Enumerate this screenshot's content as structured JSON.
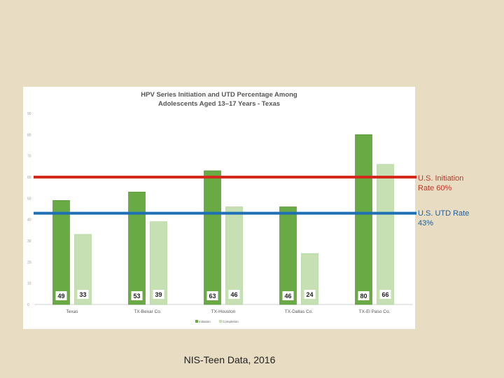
{
  "chart_data": {
    "type": "bar",
    "title": "HPV Series Initiation and UTD Percentage Among Adolescents Aged 13–17 Years - Texas",
    "categories": [
      "Texas",
      "TX-Bexar Co.",
      "TX-Houston",
      "TX-Dallas Co.",
      "TX-El Paso Co."
    ],
    "series": [
      {
        "name": "Initiation",
        "values": [
          49,
          53,
          63,
          46,
          80
        ],
        "color": "#6aaa45"
      },
      {
        "name": "Completion",
        "values": [
          33,
          39,
          46,
          24,
          66
        ],
        "color": "#c6e0b4"
      }
    ],
    "ylim": [
      0,
      90
    ],
    "yticks": [
      0,
      10,
      20,
      30,
      40,
      50,
      60,
      70,
      80,
      90
    ],
    "grid": false,
    "legend": "bottom",
    "reference_lines": [
      {
        "label": "U.S. Initiation Rate 60%",
        "value": 60,
        "color": "#d42a1e"
      },
      {
        "label": "U.S. UTD Rate 43%",
        "value": 43,
        "color": "#1f6fb5"
      }
    ]
  },
  "ref_labels": {
    "initiation": "U.S. Initiation\nRate 60%",
    "utd": "U.S. UTD Rate\n43%"
  },
  "caption": "NIS-Teen Data, 2016"
}
